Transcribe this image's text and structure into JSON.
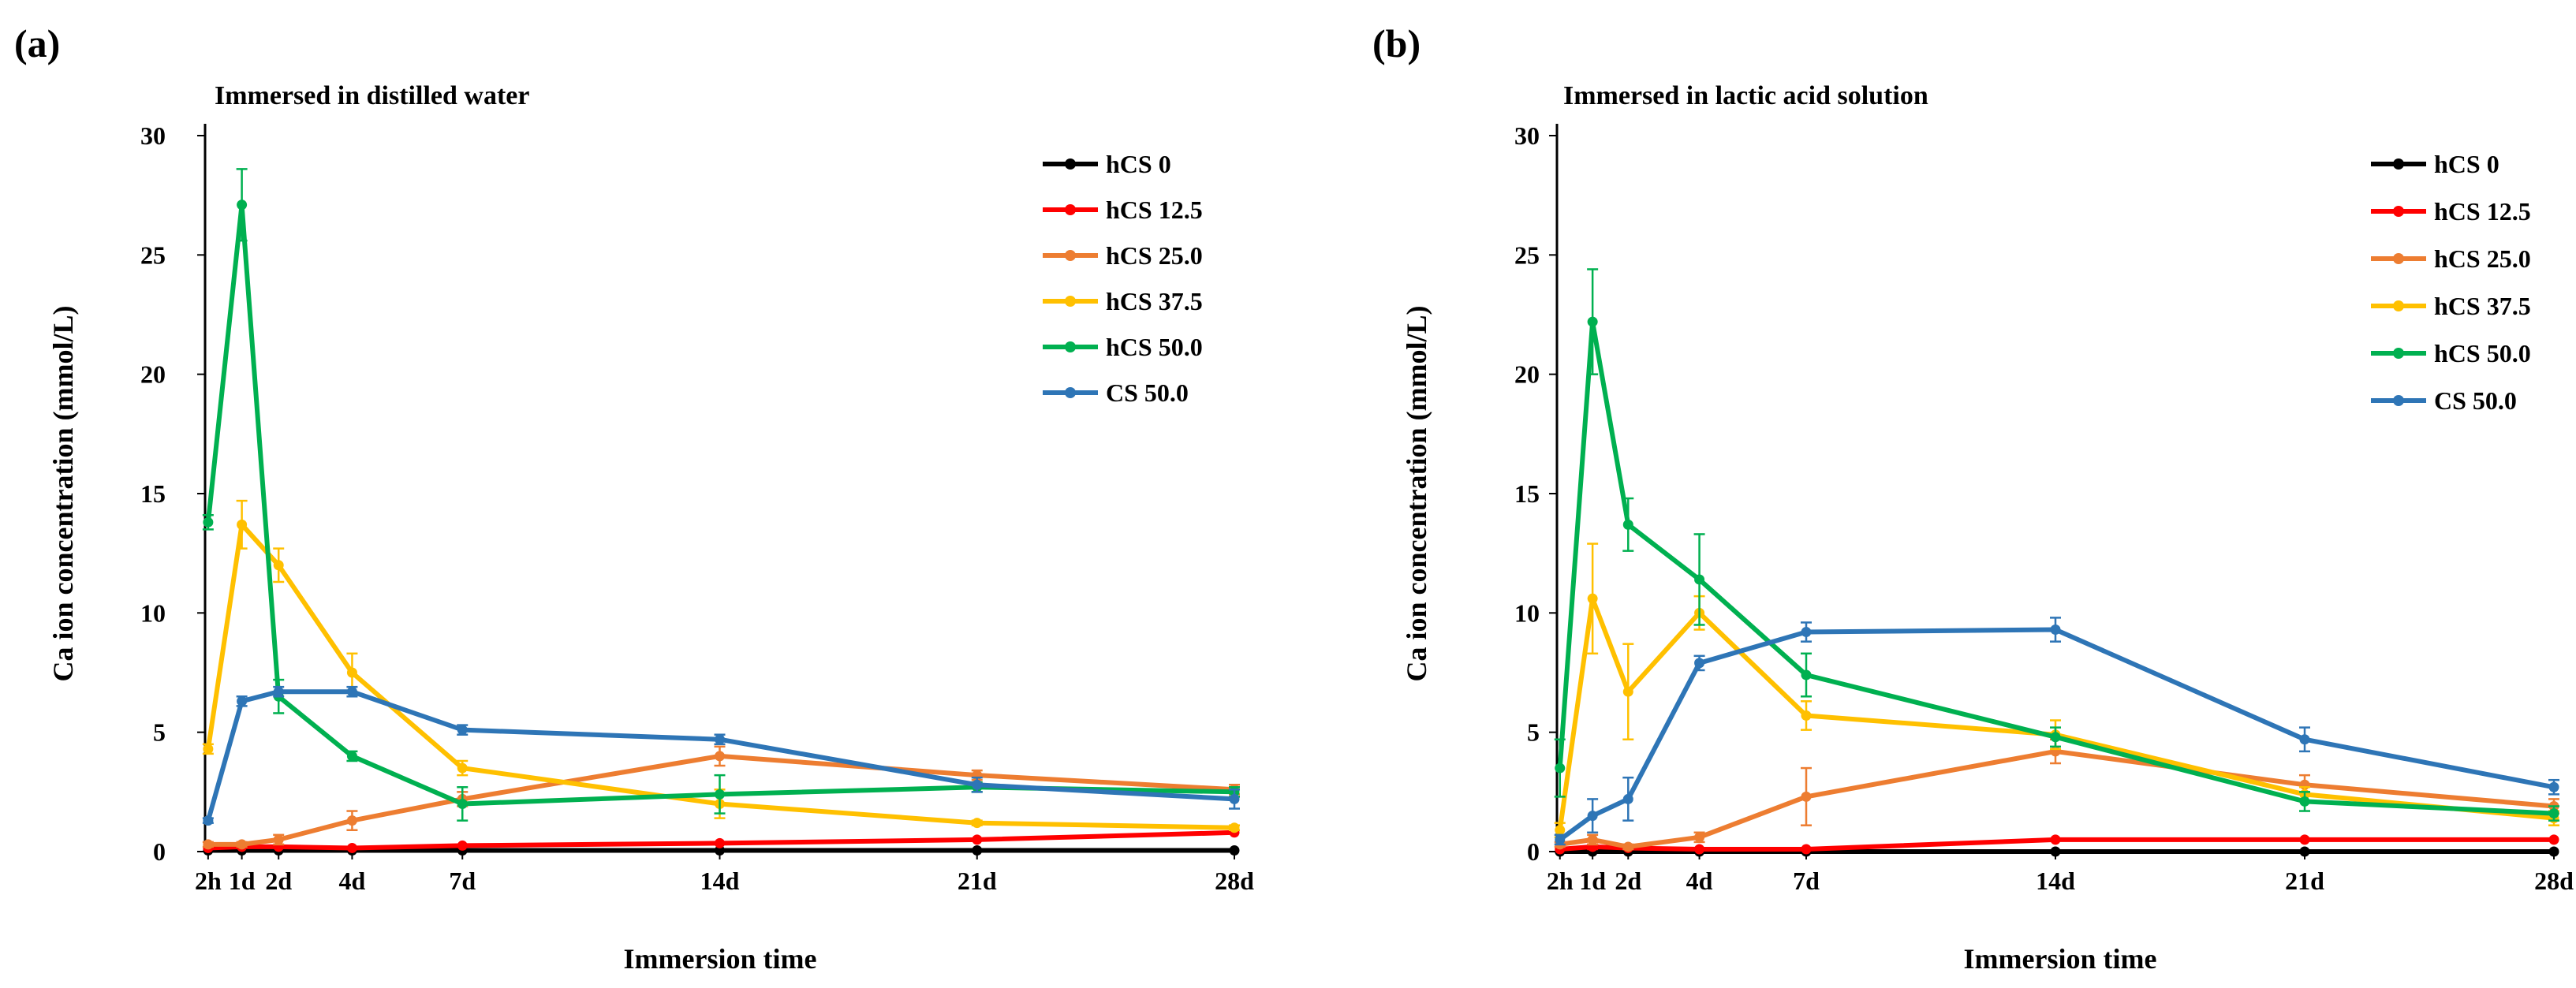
{
  "chart_data": [
    {
      "type": "line",
      "panel_label": "(a)",
      "title": "Immersed in distilled water",
      "xlabel": "Immersion time",
      "ylabel": "Ca ion concentration (mmol/L)",
      "ylim": [
        0,
        30
      ],
      "yticks": [
        "0",
        "5",
        "10",
        "15",
        "20",
        "25",
        "30"
      ],
      "x_days": [
        0.083,
        1,
        2,
        4,
        7,
        14,
        21,
        28
      ],
      "x_tick_labels": [
        "2h",
        "1d",
        "2d",
        "4d",
        "7d",
        "14d",
        "21d",
        "28d"
      ],
      "legend_position": "top-right",
      "grid": false,
      "series": [
        {
          "name": "hCS 0",
          "color": "#000000",
          "values": [
            0.05,
            0.05,
            0.05,
            0.05,
            0.05,
            0.05,
            0.05,
            0.05
          ],
          "errors": [
            0,
            0,
            0,
            0,
            0,
            0,
            0,
            0
          ]
        },
        {
          "name": "hCS 12.5",
          "color": "#ff0000",
          "values": [
            0.15,
            0.2,
            0.2,
            0.15,
            0.25,
            0.35,
            0.5,
            0.8
          ],
          "errors": [
            0,
            0,
            0,
            0,
            0,
            0,
            0,
            0
          ]
        },
        {
          "name": "hCS 25.0",
          "color": "#ed7d31",
          "values": [
            0.3,
            0.3,
            0.5,
            1.3,
            2.2,
            4.0,
            3.2,
            2.6
          ],
          "errors": [
            0.1,
            0.1,
            0.2,
            0.4,
            0.3,
            0.4,
            0.2,
            0.2
          ]
        },
        {
          "name": "hCS 37.5",
          "color": "#ffc000",
          "values": [
            4.3,
            13.7,
            12.0,
            7.5,
            3.5,
            2.0,
            1.2,
            1.0
          ],
          "errors": [
            0.2,
            1.0,
            0.7,
            0.8,
            0.3,
            0.6,
            0.1,
            0.1
          ]
        },
        {
          "name": "hCS 50.0",
          "color": "#00b050",
          "values": [
            13.8,
            27.1,
            6.5,
            4.0,
            2.0,
            2.4,
            2.7,
            2.5
          ],
          "errors": [
            0.3,
            1.5,
            0.7,
            0.2,
            0.7,
            0.8,
            0.2,
            0.2
          ]
        },
        {
          "name": "CS 50.0",
          "color": "#2e75b6",
          "values": [
            1.3,
            6.3,
            6.7,
            6.7,
            5.1,
            4.7,
            2.8,
            2.2
          ],
          "errors": [
            0.1,
            0.2,
            0.2,
            0.2,
            0.2,
            0.2,
            0.3,
            0.4
          ]
        }
      ]
    },
    {
      "type": "line",
      "panel_label": "(b)",
      "title": "Immersed in lactic acid solution",
      "xlabel": "Immersion time",
      "ylabel": "Ca ion concentration (mmol/L)",
      "ylim": [
        0,
        30
      ],
      "yticks": [
        "0",
        "5",
        "10",
        "15",
        "20",
        "25",
        "30"
      ],
      "x_days": [
        0.083,
        1,
        2,
        4,
        7,
        14,
        21,
        28
      ],
      "x_tick_labels": [
        "2h",
        "1d",
        "2d",
        "4d",
        "7d",
        "14d",
        "21d",
        "28d"
      ],
      "legend_position": "top-right",
      "grid": false,
      "series": [
        {
          "name": "hCS 0",
          "color": "#000000",
          "values": [
            0.0,
            0.0,
            0.0,
            0.0,
            0.0,
            0.0,
            0.0,
            0.0
          ],
          "errors": [
            0,
            0,
            0,
            0,
            0,
            0,
            0,
            0
          ]
        },
        {
          "name": "hCS 12.5",
          "color": "#ff0000",
          "values": [
            0.1,
            0.2,
            0.15,
            0.1,
            0.1,
            0.5,
            0.5,
            0.5
          ],
          "errors": [
            0,
            0.1,
            0,
            0,
            0,
            0,
            0,
            0
          ]
        },
        {
          "name": "hCS 25.0",
          "color": "#ed7d31",
          "values": [
            0.3,
            0.5,
            0.2,
            0.6,
            2.3,
            4.2,
            2.8,
            1.9
          ],
          "errors": [
            0.1,
            0.2,
            0.1,
            0.2,
            1.2,
            0.5,
            0.4,
            0.3
          ]
        },
        {
          "name": "hCS 37.5",
          "color": "#ffc000",
          "values": [
            0.9,
            10.6,
            6.7,
            10.0,
            5.7,
            4.9,
            2.4,
            1.4
          ],
          "errors": [
            0.3,
            2.3,
            2.0,
            0.7,
            0.6,
            0.6,
            0.3,
            0.3
          ]
        },
        {
          "name": "hCS 50.0",
          "color": "#00b050",
          "values": [
            3.5,
            22.2,
            13.7,
            11.4,
            7.4,
            4.8,
            2.1,
            1.6
          ],
          "errors": [
            1.2,
            2.2,
            1.1,
            1.9,
            0.9,
            0.4,
            0.4,
            0.3
          ]
        },
        {
          "name": "CS 50.0",
          "color": "#2e75b6",
          "values": [
            0.5,
            1.5,
            2.2,
            7.9,
            9.2,
            9.3,
            4.7,
            2.7
          ],
          "errors": [
            0.2,
            0.7,
            0.9,
            0.3,
            0.4,
            0.5,
            0.5,
            0.3
          ]
        }
      ]
    }
  ]
}
